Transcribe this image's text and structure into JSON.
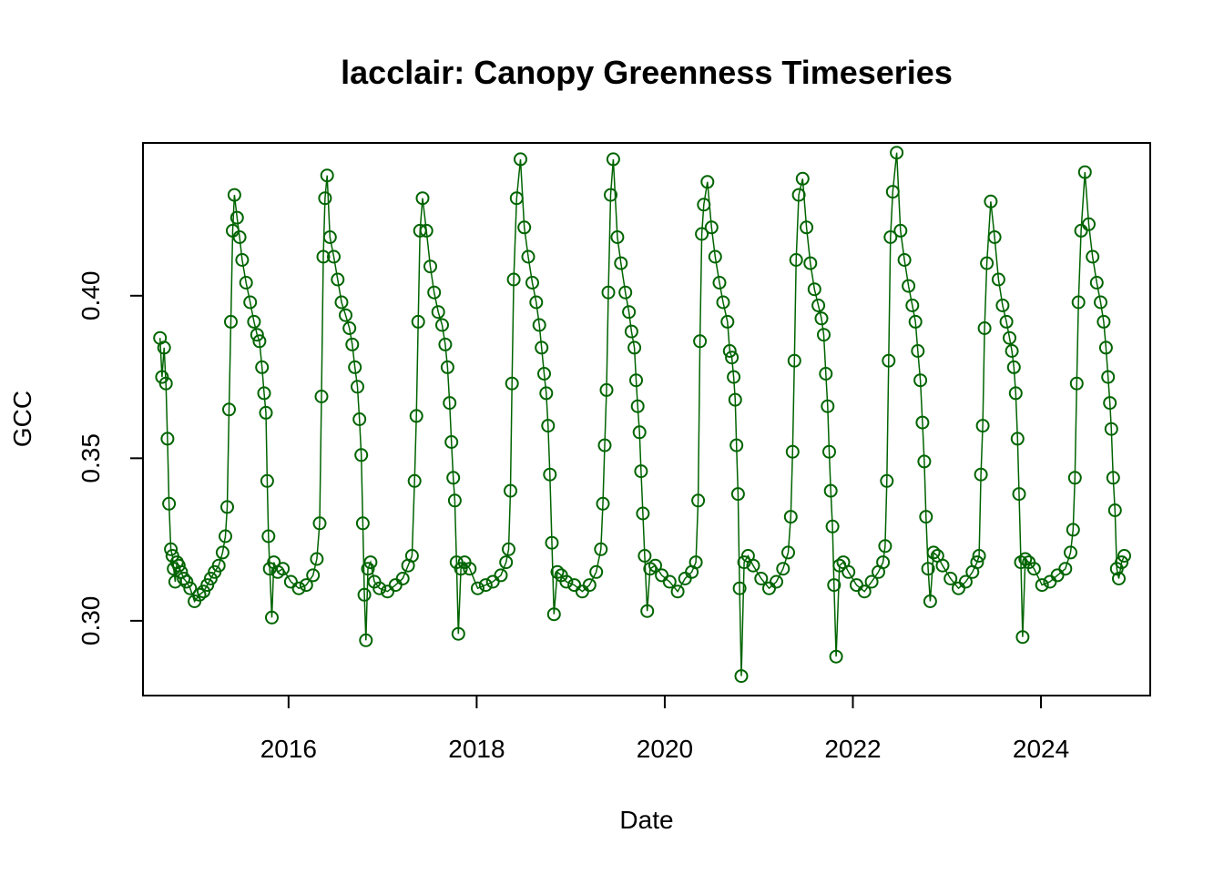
{
  "chart_data": {
    "type": "line",
    "title": "lacclair: Canopy Greenness Timeseries",
    "xlabel": "Date",
    "ylabel": "GCC",
    "x_ticks": [
      "2016",
      "2018",
      "2020",
      "2022",
      "2024"
    ],
    "y_ticks": [
      "0.30",
      "0.35",
      "0.40"
    ],
    "xlim": [
      "2014-06-15",
      "2025-03-01"
    ],
    "ylim": [
      0.277,
      0.447
    ],
    "marker": "open-circle",
    "line": "thin-solid",
    "series_color": "#006400",
    "grid": false,
    "legend": "none",
    "series": [
      {
        "x": [
          "2014-08-20",
          "2014-08-28",
          "2014-09-05",
          "2014-09-12",
          "2014-09-18",
          "2014-09-24",
          "2014-10-01",
          "2014-10-07",
          "2014-10-12",
          "2014-10-18",
          "2014-10-25",
          "2014-11-01",
          "2014-11-10",
          "2014-11-20",
          "2014-12-01",
          "2014-12-15",
          "2015-01-01",
          "2015-01-20",
          "2015-02-05",
          "2015-02-20",
          "2015-03-05",
          "2015-03-20",
          "2015-04-05",
          "2015-04-20",
          "2015-05-01",
          "2015-05-08",
          "2015-05-15",
          "2015-05-22",
          "2015-05-29",
          "2015-06-05",
          "2015-06-15",
          "2015-06-25",
          "2015-07-05",
          "2015-07-20",
          "2015-08-05",
          "2015-08-20",
          "2015-09-01",
          "2015-09-10",
          "2015-09-20",
          "2015-09-28",
          "2015-10-05",
          "2015-10-10",
          "2015-10-15",
          "2015-10-20",
          "2015-10-28",
          "2015-11-05",
          "2015-11-20",
          "2015-12-10",
          "2016-01-10",
          "2016-02-10",
          "2016-03-10",
          "2016-04-05",
          "2016-04-20",
          "2016-05-01",
          "2016-05-08",
          "2016-05-15",
          "2016-05-22",
          "2016-05-30",
          "2016-06-10",
          "2016-06-25",
          "2016-07-10",
          "2016-07-25",
          "2016-08-10",
          "2016-08-25",
          "2016-09-05",
          "2016-09-15",
          "2016-09-25",
          "2016-10-03",
          "2016-10-10",
          "2016-10-16",
          "2016-10-22",
          "2016-10-28",
          "2016-11-05",
          "2016-11-15",
          "2016-11-30",
          "2016-12-20",
          "2017-01-20",
          "2017-02-20",
          "2017-03-20",
          "2017-04-10",
          "2017-04-25",
          "2017-05-05",
          "2017-05-12",
          "2017-05-19",
          "2017-05-26",
          "2017-06-05",
          "2017-06-20",
          "2017-07-05",
          "2017-07-20",
          "2017-08-05",
          "2017-08-20",
          "2017-09-01",
          "2017-09-10",
          "2017-09-18",
          "2017-09-25",
          "2017-10-02",
          "2017-10-08",
          "2017-10-15",
          "2017-10-22",
          "2017-11-01",
          "2017-11-15",
          "2017-12-05",
          "2018-01-05",
          "2018-02-05",
          "2018-03-05",
          "2018-04-05",
          "2018-04-25",
          "2018-05-05",
          "2018-05-12",
          "2018-05-18",
          "2018-05-25",
          "2018-06-05",
          "2018-06-20",
          "2018-07-05",
          "2018-07-20",
          "2018-08-05",
          "2018-08-20",
          "2018-09-01",
          "2018-09-10",
          "2018-09-20",
          "2018-09-28",
          "2018-10-05",
          "2018-10-12",
          "2018-10-20",
          "2018-10-28",
          "2018-11-10",
          "2018-11-25",
          "2018-12-15",
          "2019-01-15",
          "2019-02-15",
          "2019-03-15",
          "2019-04-10",
          "2019-04-28",
          "2019-05-06",
          "2019-05-13",
          "2019-05-20",
          "2019-05-27",
          "2019-06-05",
          "2019-06-15",
          "2019-07-01",
          "2019-07-15",
          "2019-08-01",
          "2019-08-15",
          "2019-08-25",
          "2019-09-05",
          "2019-09-12",
          "2019-09-18",
          "2019-09-25",
          "2019-10-01",
          "2019-10-08",
          "2019-10-15",
          "2019-10-25",
          "2019-11-05",
          "2019-11-25",
          "2019-12-20",
          "2020-01-20",
          "2020-02-20",
          "2020-03-20",
          "2020-04-15",
          "2020-05-01",
          "2020-05-10",
          "2020-05-17",
          "2020-05-24",
          "2020-06-01",
          "2020-06-15",
          "2020-07-01",
          "2020-07-15",
          "2020-08-01",
          "2020-08-15",
          "2020-09-01",
          "2020-09-10",
          "2020-09-18",
          "2020-09-25",
          "2020-10-01",
          "2020-10-06",
          "2020-10-12",
          "2020-10-18",
          "2020-10-25",
          "2020-11-05",
          "2020-11-20",
          "2020-12-10",
          "2021-01-10",
          "2021-02-10",
          "2021-03-10",
          "2021-04-05",
          "2021-04-25",
          "2021-05-05",
          "2021-05-12",
          "2021-05-19",
          "2021-05-26",
          "2021-06-05",
          "2021-06-20",
          "2021-07-05",
          "2021-07-20",
          "2021-08-05",
          "2021-08-20",
          "2021-09-01",
          "2021-09-10",
          "2021-09-18",
          "2021-09-25",
          "2021-10-01",
          "2021-10-07",
          "2021-10-14",
          "2021-10-20",
          "2021-10-28",
          "2021-11-10",
          "2021-11-25",
          "2021-12-15",
          "2022-01-15",
          "2022-02-15",
          "2022-03-15",
          "2022-04-10",
          "2022-04-28",
          "2022-05-06",
          "2022-05-13",
          "2022-05-20",
          "2022-05-27",
          "2022-06-05",
          "2022-06-20",
          "2022-07-05",
          "2022-07-20",
          "2022-08-05",
          "2022-08-20",
          "2022-09-01",
          "2022-09-10",
          "2022-09-20",
          "2022-09-28",
          "2022-10-05",
          "2022-10-12",
          "2022-10-20",
          "2022-10-28",
          "2022-11-10",
          "2022-11-25",
          "2022-12-15",
          "2023-01-15",
          "2023-02-15",
          "2023-03-15",
          "2023-04-10",
          "2023-04-28",
          "2023-05-06",
          "2023-05-13",
          "2023-05-20",
          "2023-05-27",
          "2023-06-05",
          "2023-06-20",
          "2023-07-05",
          "2023-07-20",
          "2023-08-05",
          "2023-08-20",
          "2023-09-01",
          "2023-09-10",
          "2023-09-18",
          "2023-09-25",
          "2023-10-02",
          "2023-10-08",
          "2023-10-15",
          "2023-10-22",
          "2023-11-01",
          "2023-11-15",
          "2023-12-05",
          "2024-01-05",
          "2024-02-05",
          "2024-03-05",
          "2024-04-05",
          "2024-04-25",
          "2024-05-05",
          "2024-05-12",
          "2024-05-19",
          "2024-05-26",
          "2024-06-05",
          "2024-06-20",
          "2024-07-05",
          "2024-07-20",
          "2024-08-05",
          "2024-08-20",
          "2024-09-01",
          "2024-09-10",
          "2024-09-18",
          "2024-09-25",
          "2024-10-01",
          "2024-10-08",
          "2024-10-15",
          "2024-10-22",
          "2024-10-30",
          "2024-11-10",
          "2024-11-20"
        ],
        "y": [
          0.387,
          0.375,
          0.384,
          0.373,
          0.356,
          0.336,
          0.322,
          0.32,
          0.316,
          0.312,
          0.318,
          0.317,
          0.315,
          0.313,
          0.312,
          0.31,
          0.306,
          0.308,
          0.309,
          0.311,
          0.313,
          0.315,
          0.317,
          0.321,
          0.326,
          0.335,
          0.365,
          0.392,
          0.42,
          0.431,
          0.424,
          0.418,
          0.411,
          0.404,
          0.398,
          0.392,
          0.388,
          0.386,
          0.378,
          0.37,
          0.364,
          0.343,
          0.326,
          0.316,
          0.301,
          0.318,
          0.315,
          0.316,
          0.312,
          0.31,
          0.311,
          0.314,
          0.319,
          0.33,
          0.369,
          0.412,
          0.43,
          0.437,
          0.418,
          0.412,
          0.405,
          0.398,
          0.394,
          0.39,
          0.385,
          0.378,
          0.372,
          0.362,
          0.351,
          0.33,
          0.308,
          0.294,
          0.316,
          0.318,
          0.312,
          0.31,
          0.309,
          0.311,
          0.313,
          0.317,
          0.32,
          0.343,
          0.363,
          0.392,
          0.42,
          0.43,
          0.42,
          0.409,
          0.401,
          0.395,
          0.391,
          0.385,
          0.378,
          0.367,
          0.355,
          0.344,
          0.337,
          0.318,
          0.296,
          0.316,
          0.318,
          0.316,
          0.31,
          0.311,
          0.312,
          0.314,
          0.318,
          0.322,
          0.34,
          0.373,
          0.405,
          0.43,
          0.442,
          0.421,
          0.412,
          0.404,
          0.398,
          0.391,
          0.384,
          0.376,
          0.37,
          0.36,
          0.345,
          0.324,
          0.302,
          0.315,
          0.314,
          0.312,
          0.311,
          0.309,
          0.311,
          0.315,
          0.322,
          0.336,
          0.354,
          0.371,
          0.401,
          0.431,
          0.442,
          0.418,
          0.41,
          0.401,
          0.395,
          0.389,
          0.384,
          0.374,
          0.366,
          0.358,
          0.346,
          0.333,
          0.32,
          0.303,
          0.316,
          0.317,
          0.314,
          0.312,
          0.309,
          0.313,
          0.315,
          0.318,
          0.337,
          0.386,
          0.419,
          0.428,
          0.435,
          0.421,
          0.412,
          0.404,
          0.398,
          0.392,
          0.383,
          0.381,
          0.375,
          0.368,
          0.354,
          0.339,
          0.31,
          0.283,
          0.318,
          0.32,
          0.317,
          0.313,
          0.31,
          0.312,
          0.316,
          0.321,
          0.332,
          0.352,
          0.38,
          0.411,
          0.431,
          0.436,
          0.421,
          0.41,
          0.402,
          0.397,
          0.393,
          0.388,
          0.376,
          0.366,
          0.352,
          0.34,
          0.329,
          0.311,
          0.289,
          0.317,
          0.318,
          0.315,
          0.311,
          0.309,
          0.312,
          0.315,
          0.318,
          0.323,
          0.343,
          0.38,
          0.418,
          0.432,
          0.444,
          0.42,
          0.411,
          0.403,
          0.397,
          0.392,
          0.383,
          0.374,
          0.361,
          0.349,
          0.332,
          0.316,
          0.306,
          0.321,
          0.32,
          0.317,
          0.313,
          0.31,
          0.312,
          0.315,
          0.318,
          0.32,
          0.345,
          0.36,
          0.39,
          0.41,
          0.429,
          0.418,
          0.405,
          0.397,
          0.392,
          0.387,
          0.383,
          0.378,
          0.37,
          0.356,
          0.339,
          0.318,
          0.295,
          0.319,
          0.318,
          0.316,
          0.311,
          0.312,
          0.314,
          0.316,
          0.321,
          0.328,
          0.344,
          0.373,
          0.398,
          0.42,
          0.438,
          0.422,
          0.412,
          0.404,
          0.398,
          0.392,
          0.384,
          0.375,
          0.367,
          0.359,
          0.344,
          0.334,
          0.316,
          0.313,
          0.318,
          0.32
        ]
      }
    ]
  }
}
